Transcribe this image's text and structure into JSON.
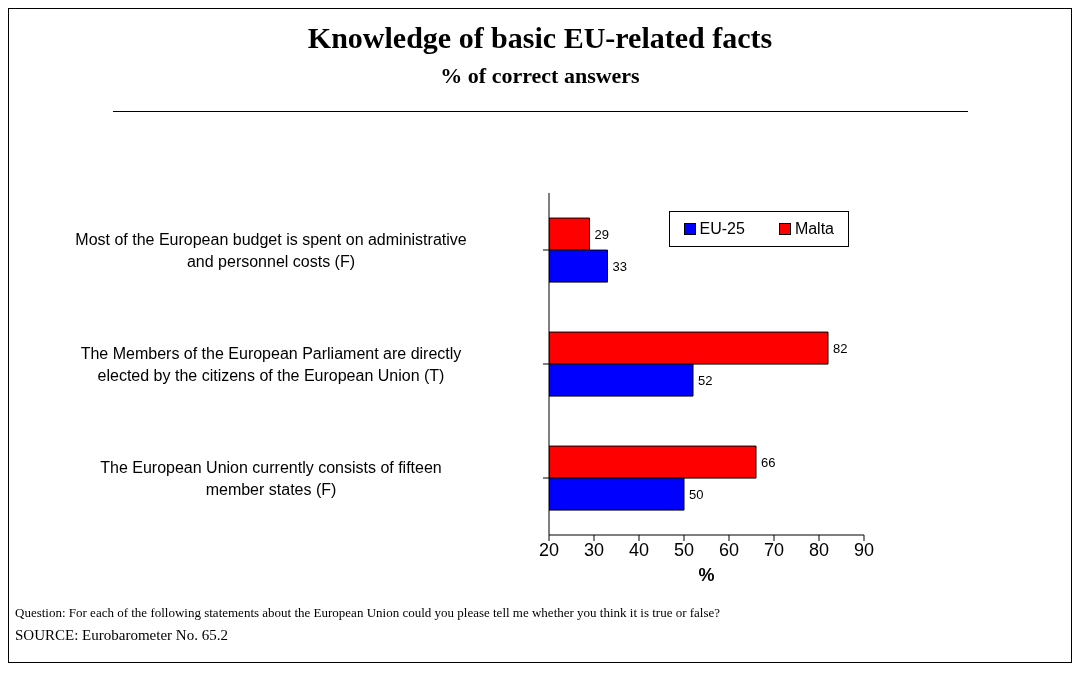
{
  "chart_data": {
    "type": "bar",
    "orientation": "horizontal",
    "title": "Knowledge of basic EU-related facts",
    "subtitle": "% of correct answers",
    "xlabel": "%",
    "categories": [
      "Most of the European budget is spent on administrative and personnel costs (F)",
      "The Members of the European Parliament are directly elected by the citizens of the European Union (T)",
      "The European Union currently consists of fifteen member states (F)"
    ],
    "series": [
      {
        "name": "EU-25",
        "color": "#0000ff",
        "values": [
          33,
          52,
          50
        ]
      },
      {
        "name": "Malta",
        "color": "#ff0000",
        "values": [
          29,
          82,
          66
        ]
      }
    ],
    "xlim": [
      20,
      90
    ],
    "xticks": [
      20,
      30,
      40,
      50,
      60,
      70,
      80,
      90
    ],
    "grid": false,
    "legend": "top right",
    "data_labels": true,
    "annotations": [
      "Question: For each of the following statements about the European Union could you please tell me whether you think it is true or false?",
      "SOURCE: Eurobarometer No. 65.2"
    ]
  }
}
